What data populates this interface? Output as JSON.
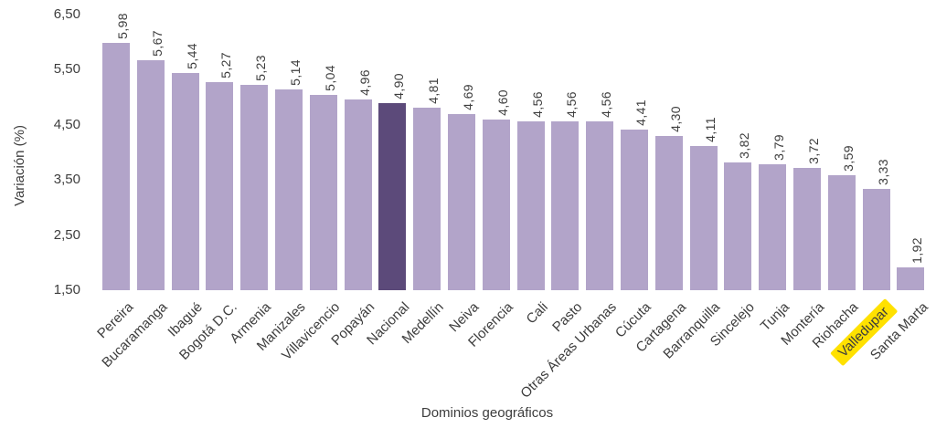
{
  "chart_data": {
    "type": "bar",
    "title": "",
    "xlabel": "Dominios geográficos",
    "ylabel": "Variación (%)",
    "categories": [
      "Pereira",
      "Bucaramanga",
      "Ibagué",
      "Bogotá D.C.",
      "Armenia",
      "Manizales",
      "Villavicencio",
      "Popayán",
      "Nacional",
      "Medellín",
      "Neiva",
      "Florencia",
      "Cali",
      "Pasto",
      "Otras Áreas Urbanas",
      "Cúcuta",
      "Cartagena",
      "Barranquilla",
      "Sincelejo",
      "Tunja",
      "Montería",
      "Riohacha",
      "Valledupar",
      "Santa Marta"
    ],
    "values": [
      5.98,
      5.67,
      5.44,
      5.27,
      5.23,
      5.14,
      5.04,
      4.96,
      4.9,
      4.81,
      4.69,
      4.6,
      4.56,
      4.56,
      4.56,
      4.41,
      4.3,
      4.11,
      3.82,
      3.79,
      3.72,
      3.59,
      3.33,
      1.92
    ],
    "value_labels": [
      "5,98",
      "5,67",
      "5,44",
      "5,27",
      "5,23",
      "5,14",
      "5,04",
      "4,96",
      "4,90",
      "4,81",
      "4,69",
      "4,60",
      "4,56",
      "4,56",
      "4,56",
      "4,41",
      "4,30",
      "4,11",
      "3,82",
      "3,79",
      "3,72",
      "3,59",
      "3,33",
      "1,92"
    ],
    "y_ticks": [
      "6,50",
      "5,50",
      "4,50",
      "3,50",
      "2,50",
      "1,50"
    ],
    "y_tick_values": [
      6.5,
      5.5,
      4.5,
      3.5,
      2.5,
      1.5
    ],
    "ylim": [
      1.5,
      6.5
    ],
    "grid": false,
    "legend": false,
    "highlighted_bar": {
      "category": "Nacional",
      "index": 8
    },
    "highlighted_x_label": {
      "category": "Valledupar",
      "index": 22
    },
    "colors": {
      "bar": "#b2a4c9",
      "bar_highlight": "#5c4a7a",
      "label_highlight_bg": "#ffe100",
      "text": "#3d3d3d",
      "background": "#ffffff"
    }
  }
}
